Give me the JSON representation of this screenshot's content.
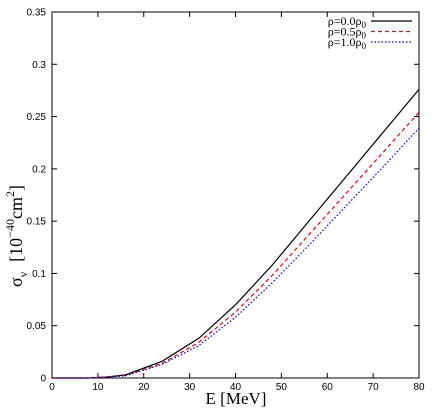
{
  "chart_data": {
    "type": "line",
    "xlabel": "E [MeV]",
    "ylabel": "σ",
    "ylabel_sub": "ν",
    "ylabel_units_prefix": "[10",
    "ylabel_units_exp": "−40",
    "ylabel_units_suffix": "cm",
    "ylabel_units_exp2": "2",
    "ylabel_units_close": "]",
    "xlim": [
      0,
      80
    ],
    "ylim": [
      0,
      0.35
    ],
    "xticks": [
      0,
      10,
      20,
      30,
      40,
      50,
      60,
      70,
      80
    ],
    "xtick_labels": [
      "0",
      "10",
      "20",
      "30",
      "40",
      "50",
      "60",
      "70",
      "80"
    ],
    "yticks": [
      0,
      0.05,
      0.1,
      0.15,
      0.2,
      0.25,
      0.3,
      0.35
    ],
    "ytick_labels": [
      "0",
      "0.05",
      "0.1",
      "0.15",
      "0.2",
      "0.25",
      "0.3",
      "0.35"
    ],
    "grid": false,
    "legend_position": "top-right",
    "x": [
      0,
      8,
      12,
      16,
      24,
      32,
      40,
      48,
      56,
      64,
      72,
      80
    ],
    "series": [
      {
        "name": "ρ=0.0ρ",
        "name_sub": "0",
        "color": "#000000",
        "dash": "solid",
        "values": [
          0,
          0,
          0.001,
          0.003,
          0.016,
          0.038,
          0.07,
          0.108,
          0.15,
          0.192,
          0.234,
          0.276
        ]
      },
      {
        "name": "ρ=0.5ρ",
        "name_sub": "0",
        "color": "#e8000b",
        "dash": "dashed",
        "values": [
          0,
          0,
          0.001,
          0.0025,
          0.014,
          0.034,
          0.063,
          0.098,
          0.137,
          0.176,
          0.215,
          0.254
        ]
      },
      {
        "name": "ρ=1.0ρ",
        "name_sub": "0",
        "color": "#0000cc",
        "dash": "dotted",
        "values": [
          0,
          0,
          0.001,
          0.002,
          0.013,
          0.031,
          0.058,
          0.091,
          0.127,
          0.164,
          0.201,
          0.239
        ]
      }
    ]
  }
}
